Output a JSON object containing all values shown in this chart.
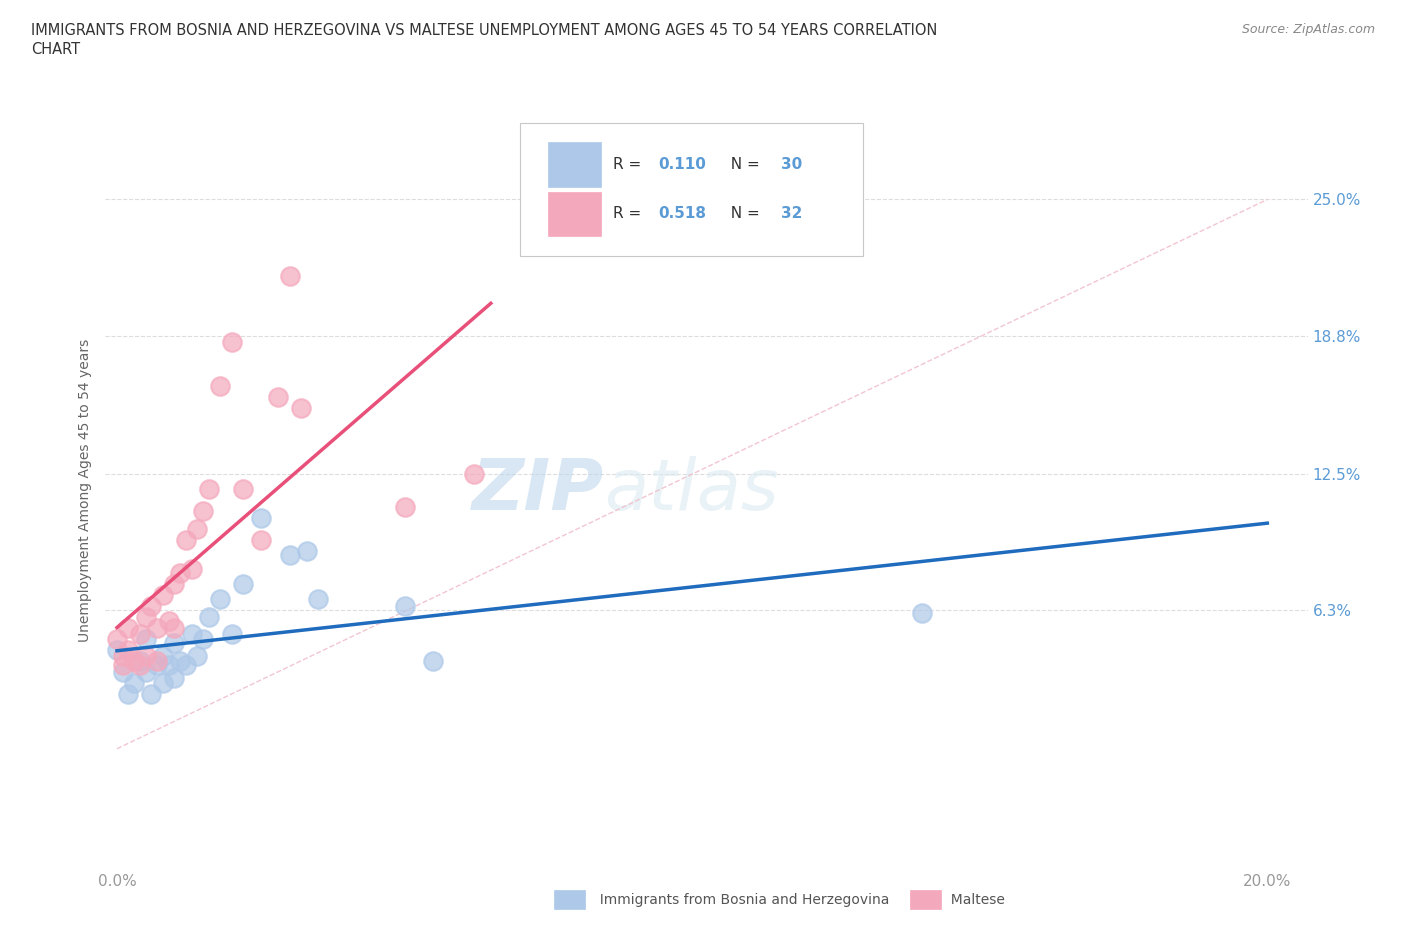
{
  "title_line1": "IMMIGRANTS FROM BOSNIA AND HERZEGOVINA VS MALTESE UNEMPLOYMENT AMONG AGES 45 TO 54 YEARS CORRELATION",
  "title_line2": "CHART",
  "source": "Source: ZipAtlas.com",
  "ylabel": "Unemployment Among Ages 45 to 54 years",
  "legend_label1": "Immigrants from Bosnia and Herzegovina",
  "legend_label2": "Maltese",
  "R1": "0.110",
  "N1": "30",
  "R2": "0.518",
  "N2": "32",
  "blue_color": "#adc8e8",
  "pink_color": "#f4a8bc",
  "blue_line_color": "#1f6bbd",
  "pink_line_color": "#e8507a",
  "ref_line_color": "#f0c0cc",
  "axis_color": "#cccccc",
  "tick_color": "#999999",
  "right_tick_color": "#5b9bd5",
  "ylabel_color": "#666666",
  "watermark_color": "#ccdff0",
  "blue_scatter_x": [
    0.0,
    0.001,
    0.002,
    0.003,
    0.004,
    0.005,
    0.005,
    0.006,
    0.007,
    0.008,
    0.008,
    0.009,
    0.01,
    0.01,
    0.011,
    0.012,
    0.013,
    0.014,
    0.015,
    0.016,
    0.018,
    0.02,
    0.022,
    0.025,
    0.03,
    0.033,
    0.035,
    0.05,
    0.055,
    0.14
  ],
  "blue_scatter_y": [
    0.045,
    0.035,
    0.025,
    0.03,
    0.04,
    0.05,
    0.035,
    0.025,
    0.038,
    0.042,
    0.03,
    0.038,
    0.048,
    0.032,
    0.04,
    0.038,
    0.052,
    0.042,
    0.05,
    0.06,
    0.068,
    0.052,
    0.075,
    0.105,
    0.088,
    0.09,
    0.068,
    0.065,
    0.04,
    0.062
  ],
  "pink_scatter_x": [
    0.0,
    0.001,
    0.001,
    0.002,
    0.002,
    0.003,
    0.004,
    0.004,
    0.005,
    0.005,
    0.006,
    0.007,
    0.007,
    0.008,
    0.009,
    0.01,
    0.01,
    0.011,
    0.012,
    0.013,
    0.014,
    0.015,
    0.016,
    0.018,
    0.02,
    0.022,
    0.025,
    0.028,
    0.03,
    0.032,
    0.05,
    0.062
  ],
  "pink_scatter_y": [
    0.05,
    0.042,
    0.038,
    0.055,
    0.045,
    0.04,
    0.052,
    0.038,
    0.06,
    0.042,
    0.065,
    0.04,
    0.055,
    0.07,
    0.058,
    0.075,
    0.055,
    0.08,
    0.095,
    0.082,
    0.1,
    0.108,
    0.118,
    0.165,
    0.185,
    0.118,
    0.095,
    0.16,
    0.215,
    0.155,
    0.11,
    0.125
  ],
  "xlim_min": -0.002,
  "xlim_max": 0.207,
  "ylim_min": -0.055,
  "ylim_max": 0.29,
  "ytick_values": [
    0.063,
    0.125,
    0.188,
    0.25
  ],
  "ytick_labels": [
    "6.3%",
    "12.5%",
    "18.8%",
    "25.0%"
  ],
  "xtick_values": [
    0.0,
    0.05,
    0.1,
    0.15,
    0.2
  ],
  "xtick_labels": [
    "0.0%",
    "",
    "",
    "",
    "20.0%"
  ]
}
